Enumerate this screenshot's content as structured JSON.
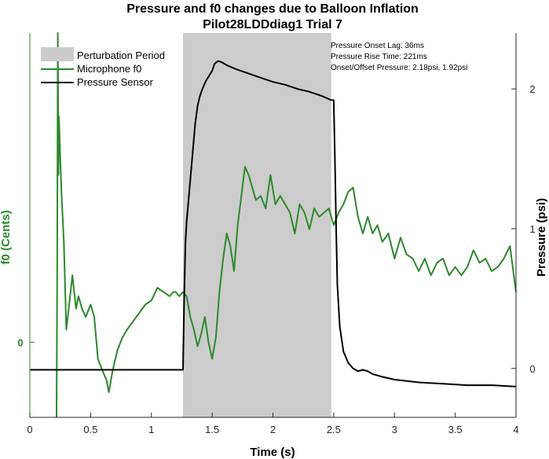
{
  "chart_data": {
    "type": "line",
    "title": "Pressure and f0 changes due to Balloon Inflation",
    "subtitle": "Pilot28LDDdiag1 Trial 7",
    "xlabel": "Time (s)",
    "ylabel_left": "f0 (Cents)",
    "ylabel_right": "Pressure (psi)",
    "xlim": [
      0,
      4
    ],
    "ylim_right": [
      -0.35,
      2.4
    ],
    "ylim_left": [
      -90,
      370
    ],
    "x_ticks": [
      "0",
      "0.5",
      "1",
      "1.5",
      "2",
      "2.5",
      "3",
      "3.5",
      "4"
    ],
    "y_right_ticks": [
      "0",
      "1",
      "2"
    ],
    "y_left_ticks": [
      "0"
    ],
    "perturbation": {
      "label": "Perturbation Period",
      "x_start": 1.26,
      "x_end": 2.48,
      "color": "#cccccc"
    },
    "legend": [
      {
        "label": "Perturbation Period",
        "kind": "patch",
        "color": "#cccccc"
      },
      {
        "label": "Microphone f0",
        "kind": "line",
        "color": "#2a8a2a"
      },
      {
        "label": "Pressure Sensor",
        "kind": "line",
        "color": "#000000"
      }
    ],
    "annotations": [
      "Pressure Onset Lag: 36ms",
      "Pressure Rise Time: 221ms",
      "Onset/Offset Pressure: 2.18psi, 1.92psi"
    ],
    "series": [
      {
        "name": "Microphone f0",
        "axis": "left",
        "color": "#2a8a2a",
        "x": [
          0.22,
          0.225,
          0.23,
          0.235,
          0.24,
          0.25,
          0.26,
          0.28,
          0.3,
          0.32,
          0.35,
          0.38,
          0.4,
          0.43,
          0.46,
          0.5,
          0.53,
          0.56,
          0.6,
          0.63,
          0.65,
          0.68,
          0.72,
          0.76,
          0.8,
          0.85,
          0.9,
          0.95,
          1.0,
          1.05,
          1.1,
          1.15,
          1.18,
          1.2,
          1.23,
          1.26,
          1.29,
          1.32,
          1.35,
          1.38,
          1.41,
          1.44,
          1.47,
          1.5,
          1.53,
          1.56,
          1.59,
          1.62,
          1.65,
          1.68,
          1.71,
          1.74,
          1.77,
          1.8,
          1.83,
          1.86,
          1.9,
          1.94,
          1.98,
          2.02,
          2.06,
          2.1,
          2.14,
          2.18,
          2.22,
          2.26,
          2.3,
          2.34,
          2.38,
          2.42,
          2.46,
          2.5,
          2.54,
          2.58,
          2.62,
          2.66,
          2.7,
          2.74,
          2.78,
          2.82,
          2.86,
          2.9,
          2.95,
          3.0,
          3.05,
          3.1,
          3.15,
          3.2,
          3.25,
          3.3,
          3.35,
          3.4,
          3.45,
          3.5,
          3.55,
          3.6,
          3.65,
          3.7,
          3.75,
          3.8,
          3.85,
          3.9,
          3.95,
          4.0
        ],
        "values": [
          -90,
          80,
          370,
          200,
          270,
          220,
          180,
          120,
          15,
          40,
          80,
          40,
          55,
          40,
          30,
          45,
          30,
          -20,
          -35,
          -45,
          -60,
          -35,
          -10,
          5,
          15,
          25,
          35,
          45,
          50,
          65,
          60,
          55,
          60,
          60,
          55,
          60,
          55,
          30,
          15,
          -5,
          10,
          30,
          0,
          -20,
          5,
          60,
          100,
          130,
          115,
          85,
          140,
          175,
          210,
          200,
          185,
          170,
          175,
          160,
          200,
          165,
          175,
          165,
          155,
          130,
          165,
          155,
          135,
          160,
          150,
          155,
          160,
          140,
          155,
          165,
          180,
          185,
          150,
          130,
          150,
          130,
          140,
          120,
          130,
          100,
          125,
          105,
          100,
          85,
          100,
          80,
          95,
          100,
          80,
          90,
          80,
          90,
          110,
          95,
          100,
          85,
          90,
          100,
          115,
          60
        ]
      },
      {
        "name": "Pressure Sensor",
        "axis": "right",
        "color": "#000000",
        "x": [
          0,
          0.5,
          1.0,
          1.26,
          1.27,
          1.28,
          1.29,
          1.3,
          1.32,
          1.34,
          1.36,
          1.38,
          1.4,
          1.42,
          1.45,
          1.48,
          1.5,
          1.52,
          1.55,
          1.58,
          1.62,
          1.7,
          1.8,
          1.9,
          2.0,
          2.1,
          2.2,
          2.3,
          2.4,
          2.48,
          2.5,
          2.51,
          2.52,
          2.53,
          2.55,
          2.58,
          2.62,
          2.66,
          2.7,
          2.74,
          2.78,
          2.82,
          2.9,
          3.0,
          3.2,
          3.4,
          3.6,
          3.8,
          4.0
        ],
        "values": [
          -0.01,
          -0.01,
          -0.01,
          -0.01,
          0.5,
          0.9,
          1.05,
          1.15,
          1.35,
          1.55,
          1.75,
          1.88,
          1.95,
          2.0,
          2.06,
          2.1,
          2.13,
          2.18,
          2.2,
          2.19,
          2.17,
          2.14,
          2.11,
          2.08,
          2.05,
          2.03,
          2.0,
          1.98,
          1.95,
          1.92,
          1.92,
          1.5,
          1.0,
          0.6,
          0.3,
          0.12,
          0.04,
          0.0,
          -0.02,
          -0.01,
          -0.02,
          -0.04,
          -0.06,
          -0.08,
          -0.1,
          -0.11,
          -0.12,
          -0.12,
          -0.13
        ]
      }
    ]
  }
}
